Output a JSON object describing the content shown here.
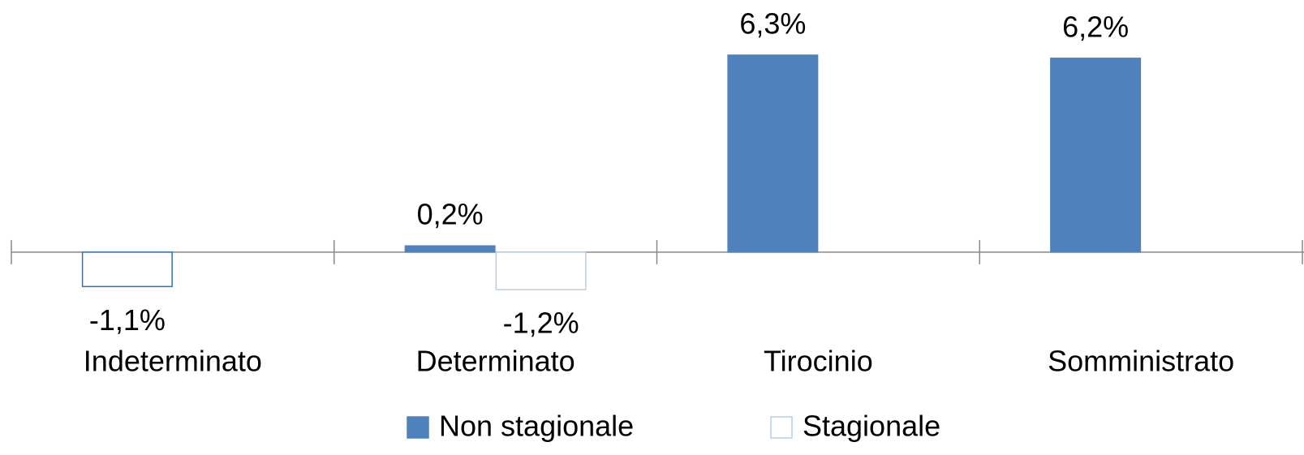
{
  "chart_data": {
    "type": "bar",
    "categories": [
      "Indeterminato",
      "Determinato",
      "Tirocinio",
      "Somministrato"
    ],
    "series": [
      {
        "name": "Non stagionale",
        "color": "#4f81bd",
        "values": [
          -1.1,
          0.2,
          6.3,
          6.2
        ],
        "value_labels": [
          "-1,1%",
          "0,2%",
          "6,3%",
          "6,2%"
        ]
      },
      {
        "name": "Stagionale",
        "color": "#b9cde5",
        "values": [
          null,
          -1.2,
          null,
          null
        ],
        "value_labels": [
          null,
          "-1,2%",
          null,
          null
        ]
      }
    ],
    "ylim": [
      -2,
      7
    ],
    "invert_if_negative": true,
    "legend": "bottom"
  }
}
